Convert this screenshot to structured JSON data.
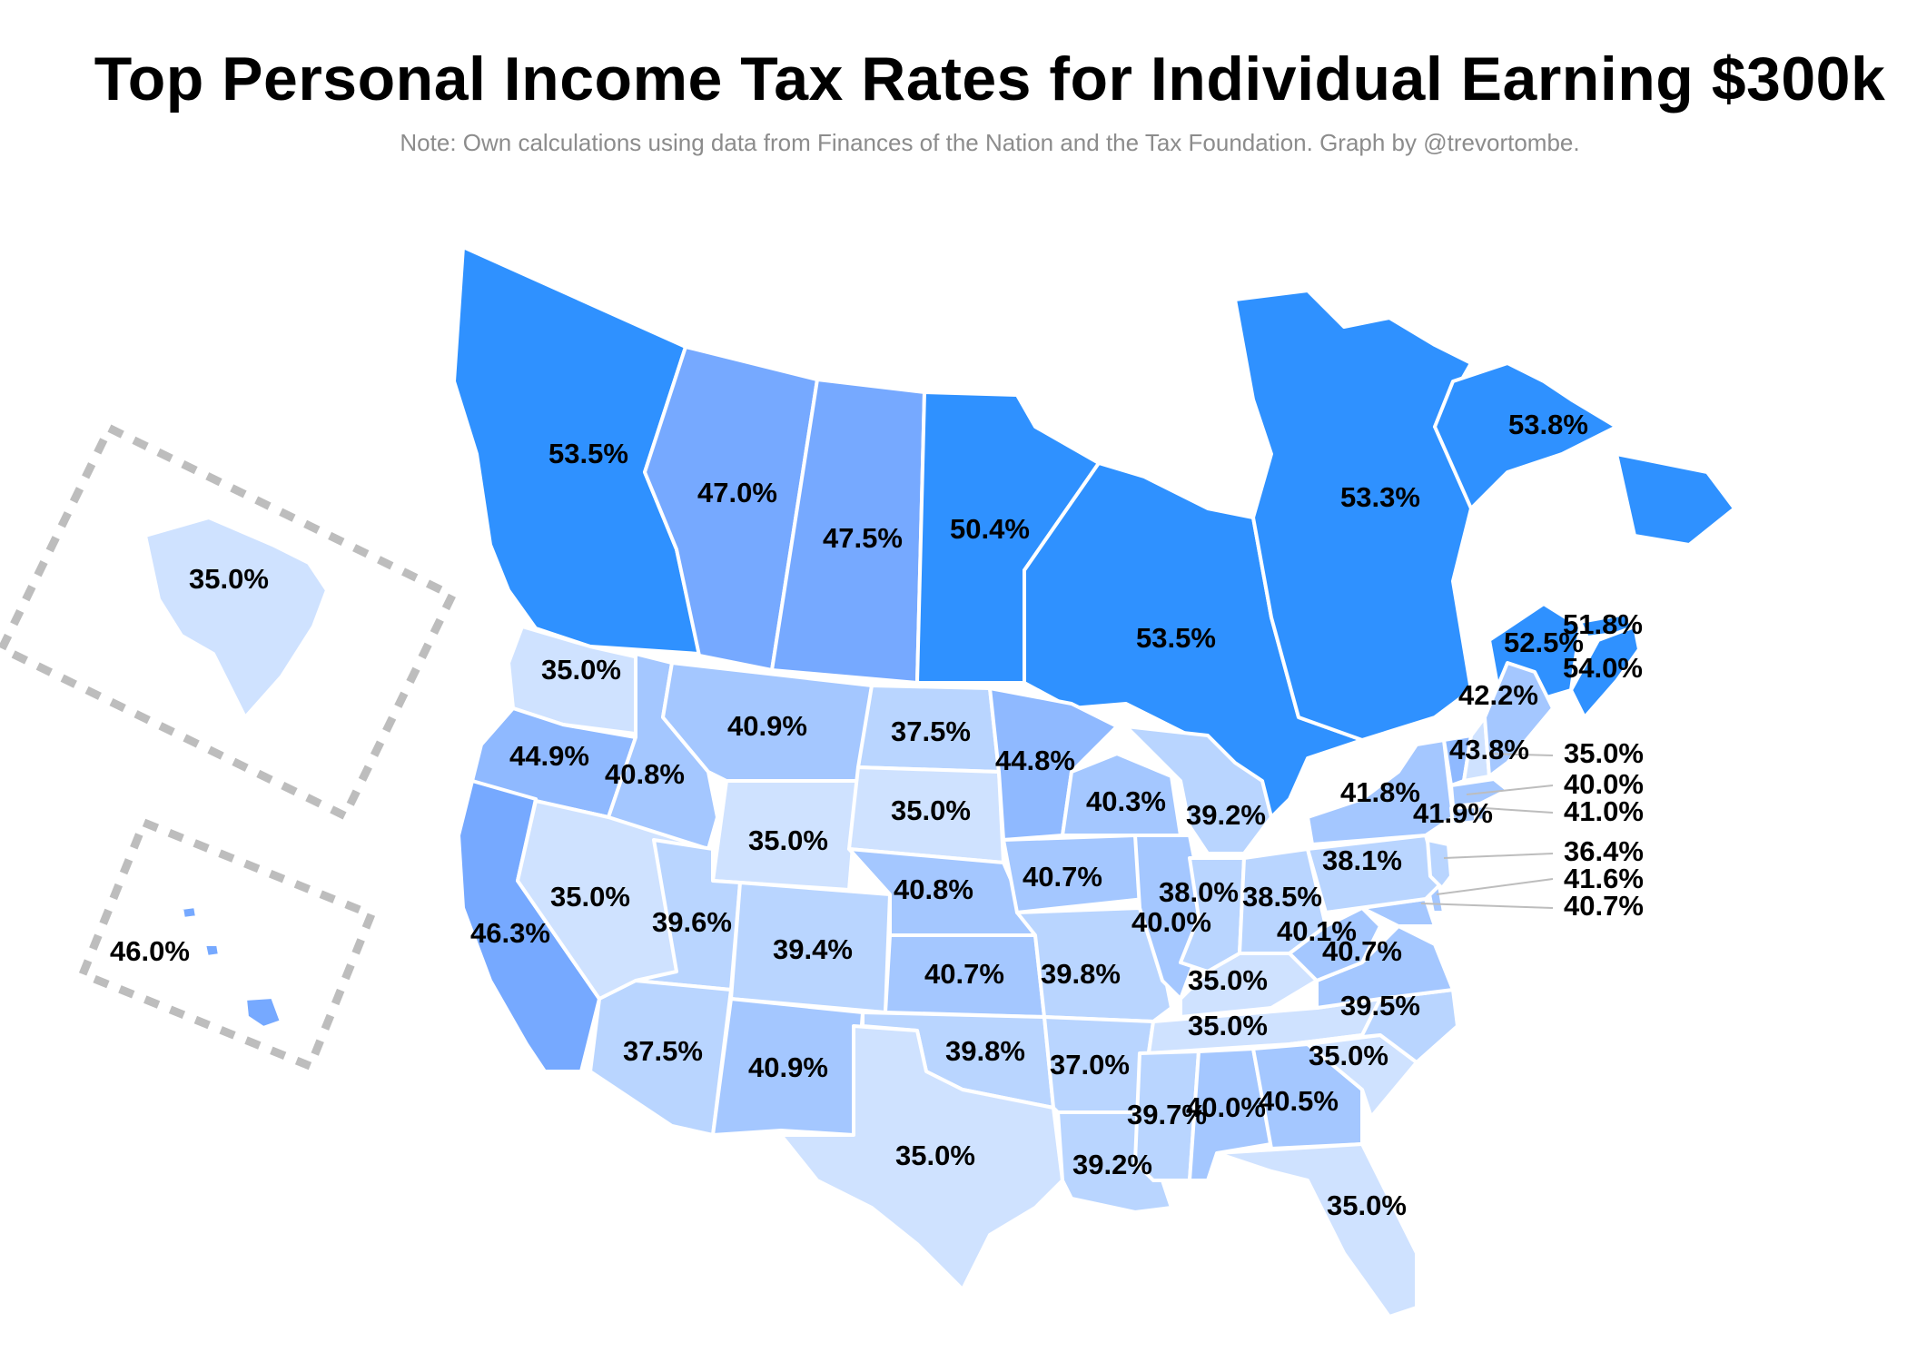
{
  "title": "Top Personal Income Tax Rates for Individual Earning $300k",
  "note": "Note: Own calculations using data from Finances of the Nation and the Tax Foundation. Graph by @trevortombe.",
  "colors": {
    "scale": [
      "#cfe2ff",
      "#b9d5ff",
      "#a4c7ff",
      "#8fb9ff",
      "#76a9ff",
      "#2f91ff"
    ]
  },
  "regions": [
    {
      "id": "BC",
      "value": 53.5,
      "label": "53.5%"
    },
    {
      "id": "AB",
      "value": 47.0,
      "label": "47.0%"
    },
    {
      "id": "SK",
      "value": 47.5,
      "label": "47.5%"
    },
    {
      "id": "MB",
      "value": 50.4,
      "label": "50.4%"
    },
    {
      "id": "ON",
      "value": 53.5,
      "label": "53.5%"
    },
    {
      "id": "QC",
      "value": 53.3,
      "label": "53.3%"
    },
    {
      "id": "NL",
      "value": 53.8,
      "label": "53.8%"
    },
    {
      "id": "PE",
      "value": 51.8,
      "label": "51.8%"
    },
    {
      "id": "NB",
      "value": 52.5,
      "label": "52.5%"
    },
    {
      "id": "NS",
      "value": 54.0,
      "label": "54.0%"
    },
    {
      "id": "AK",
      "value": 35.0,
      "label": "35.0%"
    },
    {
      "id": "HI",
      "value": 46.0,
      "label": "46.0%"
    },
    {
      "id": "WA",
      "value": 35.0,
      "label": "35.0%"
    },
    {
      "id": "OR",
      "value": 44.9,
      "label": "44.9%"
    },
    {
      "id": "CA",
      "value": 46.3,
      "label": "46.3%"
    },
    {
      "id": "ID",
      "value": 40.8,
      "label": "40.8%"
    },
    {
      "id": "NV",
      "value": 35.0,
      "label": "35.0%"
    },
    {
      "id": "MT",
      "value": 40.9,
      "label": "40.9%"
    },
    {
      "id": "WY",
      "value": 35.0,
      "label": "35.0%"
    },
    {
      "id": "UT",
      "value": 39.6,
      "label": "39.6%"
    },
    {
      "id": "AZ",
      "value": 37.5,
      "label": "37.5%"
    },
    {
      "id": "CO",
      "value": 39.4,
      "label": "39.4%"
    },
    {
      "id": "NM",
      "value": 40.9,
      "label": "40.9%"
    },
    {
      "id": "ND",
      "value": 37.5,
      "label": "37.5%"
    },
    {
      "id": "SD",
      "value": 35.0,
      "label": "35.0%"
    },
    {
      "id": "NE",
      "value": 40.8,
      "label": "40.8%"
    },
    {
      "id": "KS",
      "value": 40.7,
      "label": "40.7%"
    },
    {
      "id": "OK",
      "value": 39.8,
      "label": "39.8%"
    },
    {
      "id": "TX",
      "value": 35.0,
      "label": "35.0%"
    },
    {
      "id": "MN",
      "value": 44.8,
      "label": "44.8%"
    },
    {
      "id": "IA",
      "value": 40.7,
      "label": "40.7%"
    },
    {
      "id": "MO",
      "value": 39.8,
      "label": "39.8%"
    },
    {
      "id": "AR",
      "value": 37.0,
      "label": "37.0%"
    },
    {
      "id": "LA",
      "value": 39.2,
      "label": "39.2%"
    },
    {
      "id": "WI",
      "value": 40.3,
      "label": "40.3%"
    },
    {
      "id": "IL",
      "value": 40.0,
      "label": "40.0%"
    },
    {
      "id": "MI",
      "value": 39.2,
      "label": "39.2%"
    },
    {
      "id": "IN",
      "value": 38.0,
      "label": "38.0%"
    },
    {
      "id": "OH",
      "value": 38.5,
      "label": "38.5%"
    },
    {
      "id": "KY",
      "value": 35.0,
      "label": "35.0%"
    },
    {
      "id": "TN",
      "value": 35.0,
      "label": "35.0%"
    },
    {
      "id": "MS",
      "value": 39.7,
      "label": "39.7%"
    },
    {
      "id": "AL",
      "value": 40.0,
      "label": "40.0%"
    },
    {
      "id": "GA",
      "value": 40.5,
      "label": "40.5%"
    },
    {
      "id": "FL",
      "value": 35.0,
      "label": "35.0%"
    },
    {
      "id": "SC",
      "value": 35.0,
      "label": "35.0%"
    },
    {
      "id": "NC",
      "value": 39.5,
      "label": "39.5%"
    },
    {
      "id": "VA",
      "value": 40.7,
      "label": "40.7%"
    },
    {
      "id": "WV",
      "value": 40.1,
      "label": "40.1%"
    },
    {
      "id": "PA",
      "value": 38.1,
      "label": "38.1%"
    },
    {
      "id": "NY",
      "value": 41.8,
      "label": "41.8%"
    },
    {
      "id": "VT",
      "value": 43.8,
      "label": "43.8%"
    },
    {
      "id": "ME",
      "value": 42.2,
      "label": "42.2%"
    },
    {
      "id": "MA",
      "value": 41.9,
      "label": "41.9%"
    },
    {
      "id": "NH",
      "value": 35.0,
      "label": "35.0%"
    },
    {
      "id": "CT",
      "value": 40.0,
      "label": "40.0%"
    },
    {
      "id": "RI",
      "value": 41.0,
      "label": "41.0%"
    },
    {
      "id": "NJ",
      "value": 36.4,
      "label": "36.4%"
    },
    {
      "id": "DE",
      "value": 41.6,
      "label": "41.6%"
    },
    {
      "id": "MD",
      "value": 40.7,
      "label": "40.7%"
    }
  ]
}
